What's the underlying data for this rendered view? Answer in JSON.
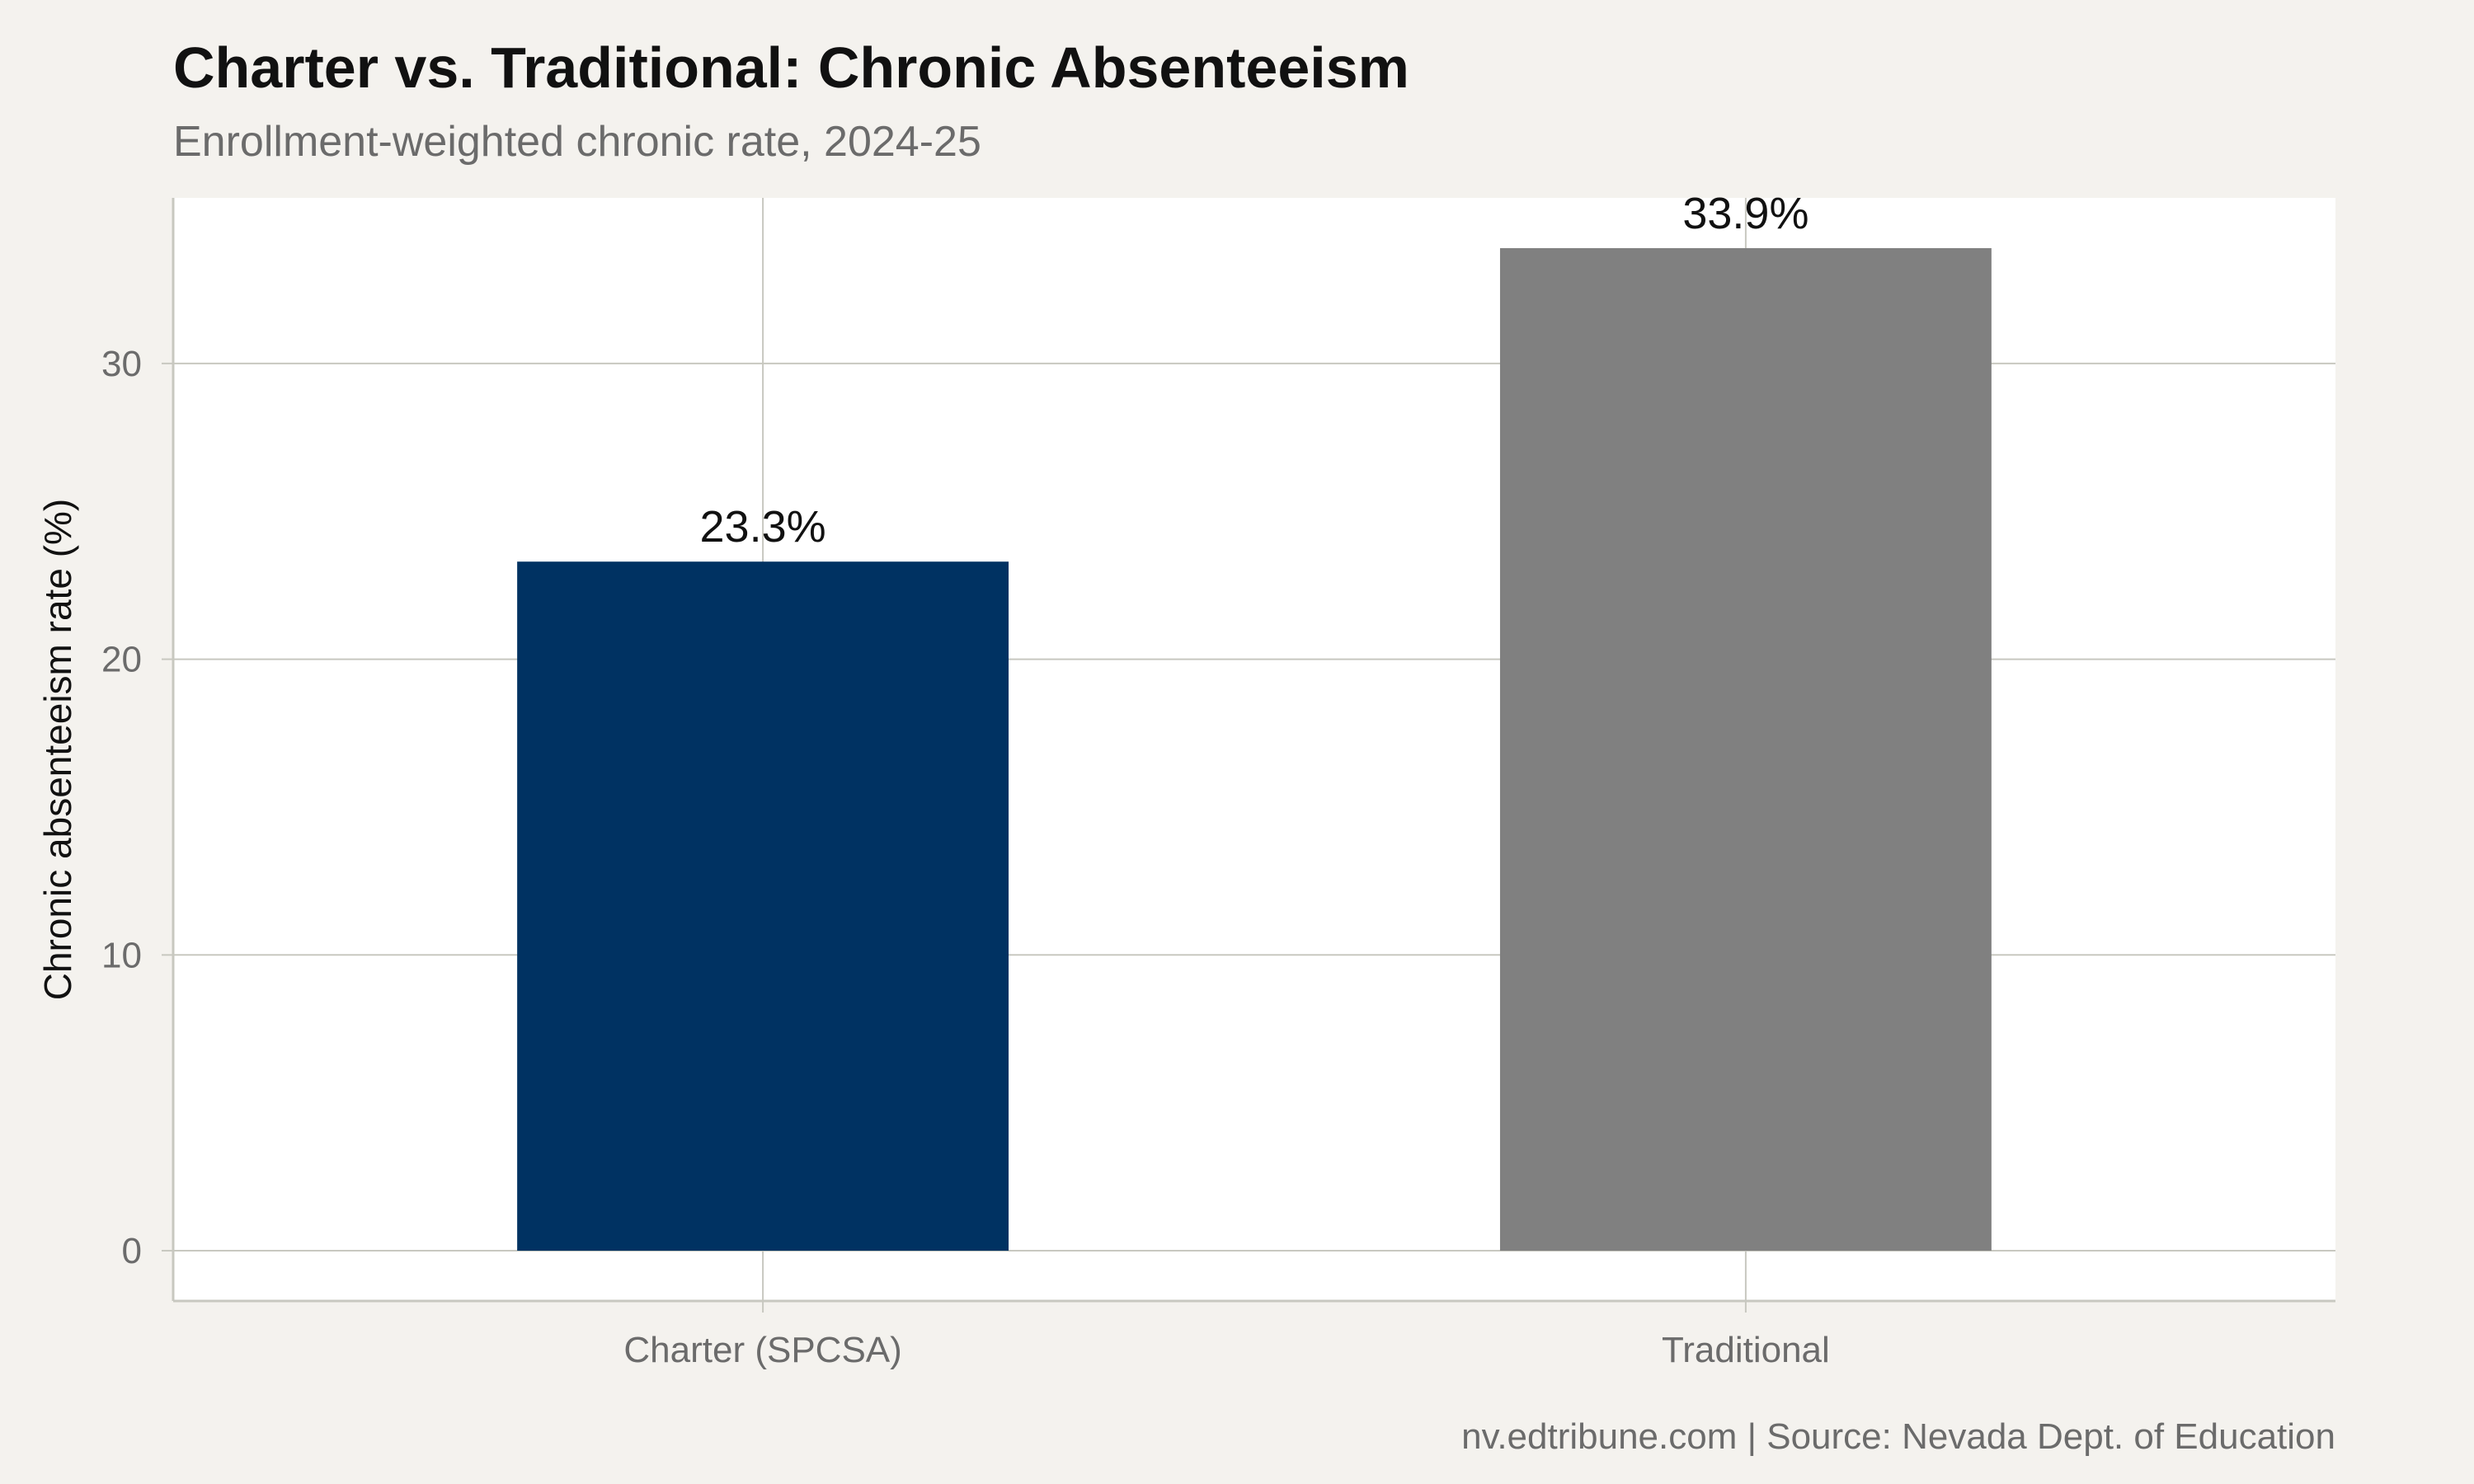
{
  "chart_data": {
    "type": "bar",
    "title": "Charter vs. Traditional: Chronic Absenteeism",
    "subtitle": "Enrollment-weighted chronic rate, 2024-25",
    "caption": "nv.edtribune.com | Source: Nevada Dept. of Education",
    "xlabel": "",
    "ylabel": "Chronic absenteeism rate (%)",
    "categories": [
      "Charter (SPCSA)",
      "Traditional"
    ],
    "values": [
      23.3,
      33.9
    ],
    "value_labels": [
      "23.3%",
      "33.9%"
    ],
    "bar_colors": [
      "#003262",
      "#808080"
    ],
    "ylim": [
      -1.7,
      35.6
    ],
    "yticks": [
      0,
      10,
      20,
      30
    ],
    "ytick_labels": [
      "0",
      "10",
      "20",
      "30"
    ],
    "grid": true,
    "legend": "none"
  },
  "colors": {
    "background": "#f4f2ee",
    "panel": "#ffffff",
    "grid": "#c8c8c0",
    "text": "#111111",
    "muted_text": "#6b6b6b"
  }
}
